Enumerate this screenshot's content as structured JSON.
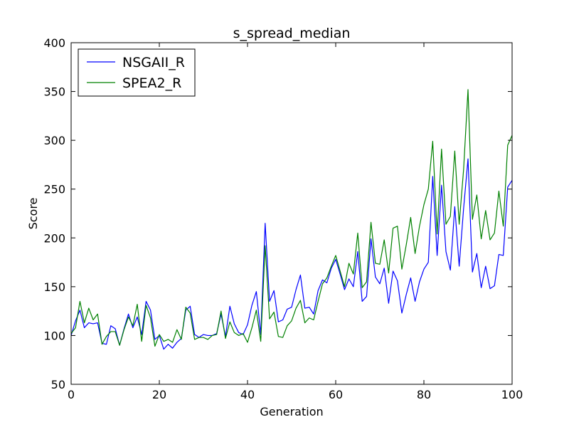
{
  "chart_data": {
    "type": "line",
    "title": "s_spread_median",
    "xlabel": "Generation",
    "ylabel": "Score",
    "xlim": [
      0,
      100
    ],
    "ylim": [
      50,
      400
    ],
    "xticks": [
      0,
      20,
      40,
      60,
      80,
      100
    ],
    "yticks": [
      50,
      100,
      150,
      200,
      250,
      300,
      350,
      400
    ],
    "grid": false,
    "legend_position": "top-left",
    "series": [
      {
        "name": "NSGAII_R",
        "color": "#0000ff",
        "x": [
          0,
          1,
          2,
          3,
          4,
          5,
          6,
          7,
          8,
          9,
          10,
          11,
          12,
          13,
          14,
          15,
          16,
          17,
          18,
          19,
          20,
          21,
          22,
          23,
          24,
          25,
          26,
          27,
          28,
          29,
          30,
          31,
          32,
          33,
          34,
          35,
          36,
          37,
          38,
          39,
          40,
          41,
          42,
          43,
          44,
          45,
          46,
          47,
          48,
          49,
          50,
          51,
          52,
          53,
          54,
          55,
          56,
          57,
          58,
          59,
          60,
          61,
          62,
          63,
          64,
          65,
          66,
          67,
          68,
          69,
          70,
          71,
          72,
          73,
          74,
          75,
          76,
          77,
          78,
          79,
          80,
          81,
          82,
          83,
          84,
          85,
          86,
          87,
          88,
          89,
          90,
          91,
          92,
          93,
          94,
          95,
          96,
          97,
          98,
          99,
          100
        ],
        "values": [
          100,
          115,
          126,
          108,
          113,
          112,
          113,
          92,
          91,
          110,
          107,
          90,
          107,
          122,
          108,
          119,
          101,
          135,
          126,
          96,
          100,
          86,
          91,
          87,
          93,
          97,
          126,
          130,
          101,
          98,
          101,
          100,
          100,
          102,
          122,
          99,
          130,
          112,
          103,
          101,
          111,
          131,
          145,
          101,
          215,
          135,
          146,
          114,
          116,
          127,
          129,
          147,
          162,
          128,
          129,
          122,
          146,
          157,
          154,
          169,
          178,
          163,
          147,
          158,
          150,
          186,
          135,
          140,
          199,
          160,
          153,
          169,
          133,
          166,
          156,
          123,
          142,
          159,
          135,
          155,
          168,
          175,
          263,
          182,
          254,
          186,
          167,
          232,
          171,
          230,
          281,
          165,
          184,
          149,
          171,
          148,
          151,
          183,
          182,
          252,
          259
        ]
      },
      {
        "name": "SPEA2_R",
        "color": "#008000",
        "x": [
          0,
          1,
          2,
          3,
          4,
          5,
          6,
          7,
          8,
          9,
          10,
          11,
          12,
          13,
          14,
          15,
          16,
          17,
          18,
          19,
          20,
          21,
          22,
          23,
          24,
          25,
          26,
          27,
          28,
          29,
          30,
          31,
          32,
          33,
          34,
          35,
          36,
          37,
          38,
          39,
          40,
          41,
          42,
          43,
          44,
          45,
          46,
          47,
          48,
          49,
          50,
          51,
          52,
          53,
          54,
          55,
          56,
          57,
          58,
          59,
          60,
          61,
          62,
          63,
          64,
          65,
          66,
          67,
          68,
          69,
          70,
          71,
          72,
          73,
          74,
          75,
          76,
          77,
          78,
          79,
          80,
          81,
          82,
          83,
          84,
          85,
          86,
          87,
          88,
          89,
          90,
          91,
          92,
          93,
          94,
          95,
          96,
          97,
          98,
          99,
          100
        ],
        "values": [
          102,
          108,
          135,
          113,
          128,
          116,
          122,
          91,
          99,
          104,
          104,
          90,
          106,
          119,
          110,
          132,
          94,
          131,
          118,
          89,
          101,
          94,
          96,
          93,
          106,
          96,
          129,
          123,
          96,
          98,
          98,
          96,
          100,
          101,
          125,
          97,
          114,
          103,
          100,
          102,
          93,
          108,
          126,
          94,
          192,
          117,
          124,
          99,
          98,
          110,
          115,
          128,
          136,
          113,
          118,
          116,
          135,
          153,
          159,
          171,
          182,
          166,
          150,
          174,
          163,
          205,
          149,
          155,
          216,
          174,
          173,
          198,
          164,
          210,
          212,
          168,
          193,
          221,
          184,
          212,
          234,
          250,
          299,
          204,
          291,
          214,
          222,
          289,
          214,
          270,
          352,
          219,
          244,
          199,
          228,
          198,
          205,
          248,
          212,
          295,
          305
        ]
      }
    ]
  }
}
